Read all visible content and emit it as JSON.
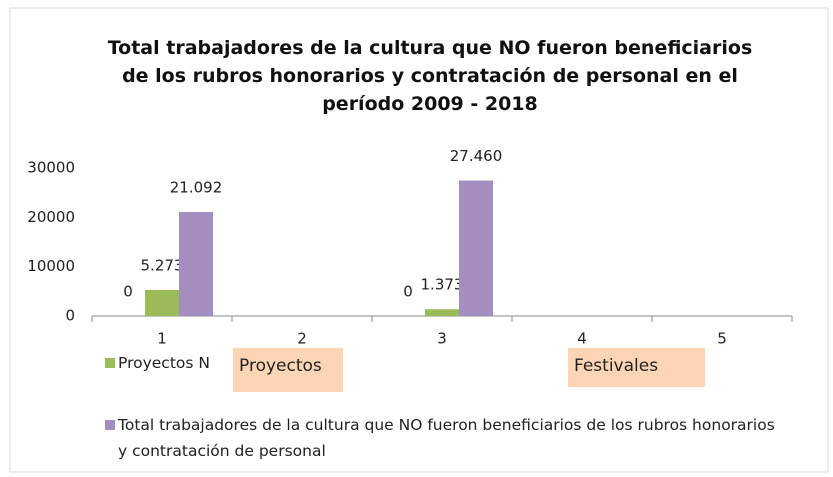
{
  "chart_data": {
    "type": "bar",
    "title": "Total trabajadores de la cultura que NO fueron beneficiarios de los rubros honorarios y contratación de personal en el período 2009 - 2018",
    "categories": [
      "1",
      "2",
      "3",
      "4",
      "5"
    ],
    "series": [
      {
        "values": [
          0,
          null,
          0,
          null,
          null
        ]
      },
      {
        "name": "Proyectos N",
        "color": "#9bbb59",
        "values": [
          5273,
          null,
          1373,
          null,
          null
        ],
        "value_labels": [
          "5.273",
          null,
          "1.373",
          null,
          null
        ]
      },
      {
        "name": "Total trabajadores de la cultura que NO fueron beneficiarios de los rubros honorarios y contratación de personal",
        "color": "#a48ebf",
        "values": [
          21092,
          null,
          27460,
          null,
          null
        ],
        "value_labels": [
          "21.092",
          null,
          "27.460",
          null,
          null
        ]
      }
    ],
    "ylim": [
      0,
      30000
    ],
    "yticks": [
      0,
      10000,
      20000,
      30000
    ],
    "annotations": [
      "Proyectos",
      "Festivales"
    ]
  }
}
